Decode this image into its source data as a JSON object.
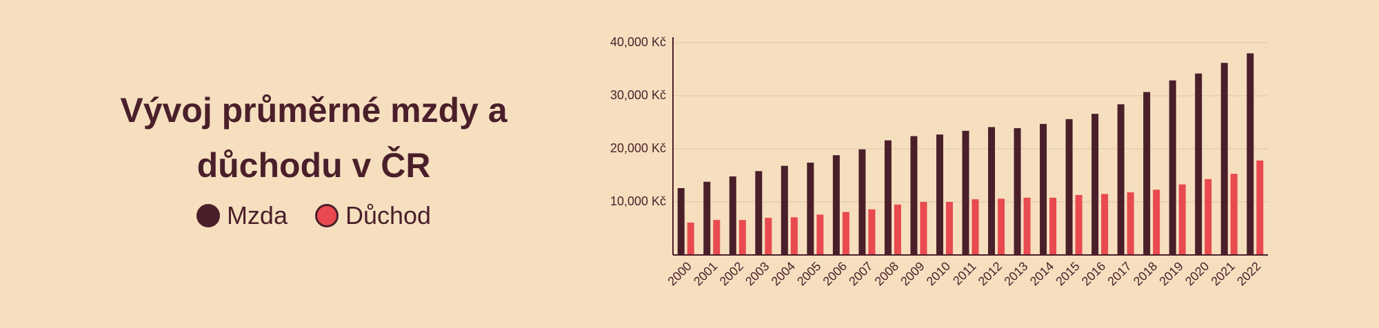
{
  "chart_data": {
    "type": "bar",
    "title": "Vývoj průměrné mzdy a důchodu v ČR",
    "categories": [
      "2000",
      "2001",
      "2002",
      "2003",
      "2004",
      "2005",
      "2006",
      "2007",
      "2008",
      "2009",
      "2010",
      "2011",
      "2012",
      "2013",
      "2014",
      "2015",
      "2016",
      "2017",
      "2018",
      "2019",
      "2020",
      "2021",
      "2022"
    ],
    "series": [
      {
        "name": "Mzda",
        "color": "#4a1f2a",
        "values": [
          12600,
          13800,
          14800,
          15800,
          16800,
          17400,
          18800,
          19900,
          21600,
          22400,
          22700,
          23400,
          24100,
          23900,
          24700,
          25600,
          26600,
          28400,
          30700,
          32900,
          34200,
          36200,
          38000
        ]
      },
      {
        "name": "Důchod",
        "color": "#e84a4f",
        "values": [
          6100,
          6600,
          6600,
          7000,
          7100,
          7600,
          8100,
          8600,
          9500,
          10000,
          10000,
          10500,
          10600,
          10800,
          10800,
          11300,
          11500,
          11800,
          12300,
          13300,
          14300,
          15300,
          17800
        ]
      }
    ],
    "ylim": [
      0,
      40000
    ],
    "yticks": [
      {
        "value": 10000,
        "label": "10,000 Kč"
      },
      {
        "value": 20000,
        "label": "20,000 Kč"
      },
      {
        "value": 30000,
        "label": "30,000 Kč"
      },
      {
        "value": 40000,
        "label": "40,000 Kč"
      }
    ],
    "grid": true
  }
}
